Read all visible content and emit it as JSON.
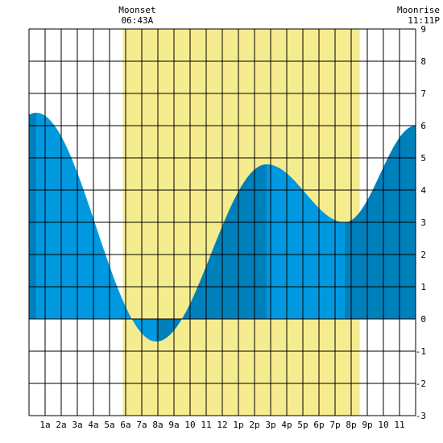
{
  "chart_data": {
    "type": "area",
    "title": "",
    "xlabel": "",
    "ylabel": "",
    "xlim": [
      0,
      24
    ],
    "ylim": [
      -3,
      9
    ],
    "grid": true,
    "x_tick_labels": [
      "1a",
      "2a",
      "3a",
      "4a",
      "5a",
      "6a",
      "7a",
      "8a",
      "9a",
      "10",
      "11",
      "12",
      "1p",
      "2p",
      "3p",
      "4p",
      "5p",
      "6p",
      "7p",
      "8p",
      "9p",
      "10",
      "11"
    ],
    "y_ticks": [
      -3,
      -2,
      -1,
      0,
      1,
      2,
      3,
      4,
      5,
      6,
      7,
      8,
      9
    ],
    "daylight_span_hours": [
      5.83,
      20.53
    ],
    "tide_extrema": [
      {
        "type": "high",
        "time_hours": 0.45,
        "height": 6.4
      },
      {
        "type": "low",
        "time_hours": 7.9,
        "height": -0.7
      },
      {
        "type": "high",
        "time_hours": 14.75,
        "height": 4.8
      },
      {
        "type": "low",
        "time_hours": 19.6,
        "height": 3.0
      }
    ],
    "tide_end_height": 6.0,
    "annotations": [
      {
        "id": "moonset",
        "label": "Moonset",
        "time": "06:43A",
        "time_hours": 6.72
      },
      {
        "id": "moonrise",
        "label": "Moonrise",
        "time": "11:11P",
        "time_hours": 23.18
      }
    ]
  },
  "colors": {
    "daylight": "#f5ec8f",
    "tide_light": "#0099e0",
    "tide_dark": "#0080bb",
    "grid": "#000000"
  }
}
